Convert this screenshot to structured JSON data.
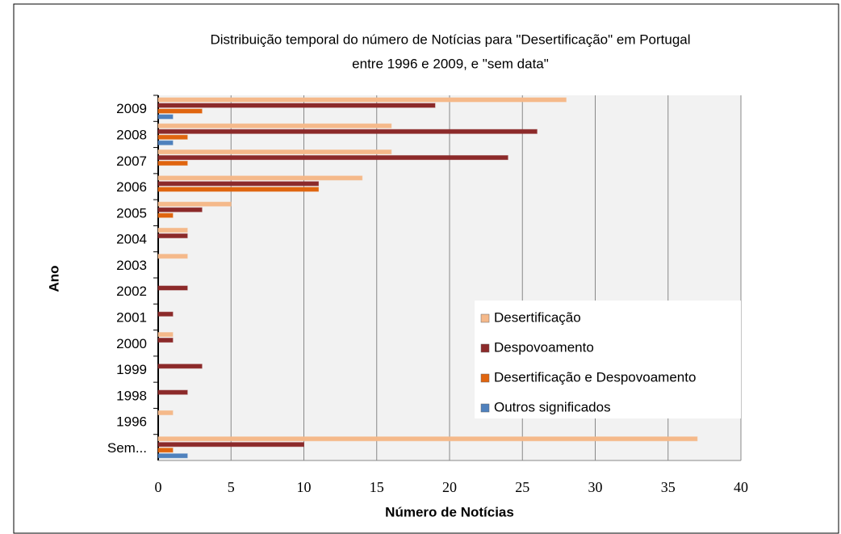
{
  "chart_data": {
    "type": "bar",
    "orientation": "horizontal",
    "title": "Distribuição temporal do número de Notícias  para \"Desertificação\" em Portugal",
    "subtitle": "entre 1996 e 2009, e \"sem data\"",
    "xlabel": "Número de Notícias",
    "ylabel": "Ano",
    "categories": [
      "2009",
      "2008",
      "2007",
      "2006",
      "2005",
      "2004",
      "2003",
      "2002",
      "2001",
      "2000",
      "1999",
      "1998",
      "1996",
      "Sem..."
    ],
    "series": [
      {
        "name": "Desertificação",
        "color": "#f5b98a",
        "values": [
          28,
          16,
          16,
          14,
          5,
          2,
          2,
          0,
          0,
          1,
          0,
          0,
          1,
          37
        ]
      },
      {
        "name": "Despovoamento",
        "color": "#8c2a2a",
        "values": [
          19,
          26,
          24,
          11,
          3,
          2,
          0,
          2,
          1,
          1,
          3,
          2,
          0,
          10
        ]
      },
      {
        "name": "Desertificação e Despovoamento",
        "color": "#e0650f",
        "values": [
          3,
          2,
          2,
          11,
          1,
          0,
          0,
          0,
          0,
          0,
          0,
          0,
          0,
          1
        ]
      },
      {
        "name": "Outros significados",
        "color": "#4f81bd",
        "values": [
          1,
          1,
          0,
          0,
          0,
          0,
          0,
          0,
          0,
          0,
          0,
          0,
          0,
          2
        ]
      }
    ],
    "xlim": [
      0,
      40
    ],
    "xticks": [
      0,
      5,
      10,
      15,
      20,
      25,
      30,
      35,
      40
    ],
    "grid": true,
    "legend": "lower right"
  }
}
